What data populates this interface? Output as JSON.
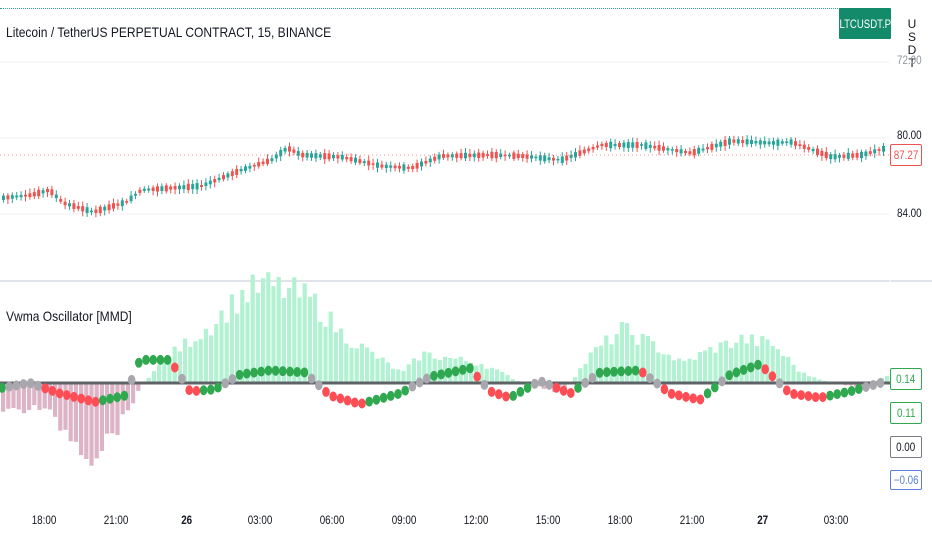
{
  "symbol_title": "Litecoin / TetherUS PERPETUAL CONTRACT, 15, BINANCE",
  "symbol_badge": "LTCUSDT.P",
  "currency": "USDT",
  "indicator_title": "Vwma Oscillator [MMD]",
  "price_axis": {
    "labels": [
      "72.00",
      "80.00",
      "84.00"
    ],
    "last_price": "87.27"
  },
  "osc_axis": {
    "labels": [
      "0.14",
      "0.11",
      "0.00",
      "−0.06"
    ]
  },
  "time_axis": [
    "18:00",
    "21:00",
    "26",
    "03:00",
    "06:00",
    "09:00",
    "12:00",
    "15:00",
    "18:00",
    "21:00",
    "27",
    "03:00"
  ],
  "colors": {
    "up": "#26a69a",
    "down": "#ef5350",
    "hist_pos": "#b2f2d2",
    "hist_neg": "#dcb4c6",
    "dot_green": "#2fa84f",
    "dot_red": "#ff4d55",
    "dot_gray": "#a7a7ad",
    "zero_line": "#5f6368",
    "badge": "#138a6a"
  }
}
